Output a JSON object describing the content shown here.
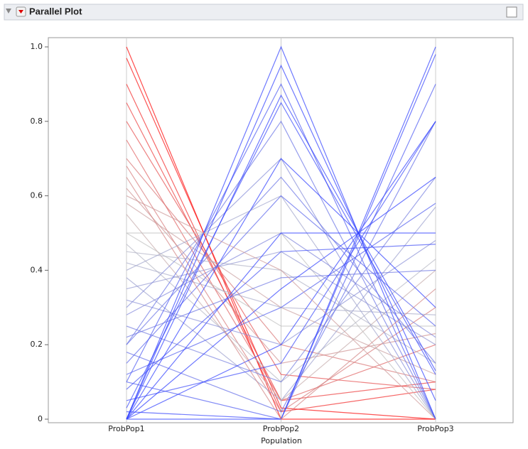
{
  "chart_data": {
    "type": "parallel",
    "title": "Parallel Plot",
    "x_label": "Population",
    "dimensions": [
      "ProbPop1",
      "ProbPop2",
      "ProbPop3"
    ],
    "ylim": [
      0,
      1
    ],
    "yticks": [
      0,
      0.2,
      0.4,
      0.6,
      0.8,
      {
        "value": 1,
        "label": "1.0"
      }
    ],
    "color_high": "#ff0000",
    "color_mid": "#c0c0c0",
    "color_low": "#3040ff",
    "values": [
      [
        1,
        0,
        0
      ],
      [
        0.97,
        0.03,
        0
      ],
      [
        0.9,
        0.02,
        0.08
      ],
      [
        0.85,
        0.05,
        0.1
      ],
      [
        0.8,
        0.12,
        0.08
      ],
      [
        0.75,
        0.05,
        0.2
      ],
      [
        0.7,
        0.2,
        0.1
      ],
      [
        0.68,
        0.02,
        0.3
      ],
      [
        0.62,
        0.15,
        0.23
      ],
      [
        0.58,
        0.3,
        0.12
      ],
      [
        0.55,
        0.05,
        0.4
      ],
      [
        0.5,
        0.5,
        0
      ],
      [
        0.5,
        0.25,
        0.25
      ],
      [
        0.47,
        0.1,
        0.43
      ],
      [
        0.45,
        0.4,
        0.15
      ],
      [
        0.42,
        0.3,
        0.28
      ],
      [
        0.4,
        0.6,
        0
      ],
      [
        0.38,
        0.05,
        0.57
      ],
      [
        0.35,
        0.45,
        0.2
      ],
      [
        0.32,
        0.2,
        0.48
      ],
      [
        0.3,
        0.7,
        0
      ],
      [
        0.28,
        0.5,
        0.22
      ],
      [
        0.25,
        0.1,
        0.65
      ],
      [
        0.22,
        0.38,
        0.4
      ],
      [
        0.2,
        0.8,
        0
      ],
      [
        0.18,
        0.02,
        0.8
      ],
      [
        0.15,
        0.6,
        0.25
      ],
      [
        0.12,
        0.3,
        0.58
      ],
      [
        0.1,
        0.9,
        0
      ],
      [
        0.08,
        0.45,
        0.47
      ],
      [
        0.05,
        0.15,
        0.8
      ],
      [
        0.03,
        0.85,
        0.12
      ],
      [
        0,
        1,
        0
      ],
      [
        0,
        0,
        1
      ],
      [
        0,
        0.5,
        0.5
      ],
      [
        0,
        0.87,
        0.13
      ],
      [
        0,
        0.2,
        0.8
      ],
      [
        0,
        0.7,
        0.3
      ],
      [
        0,
        0.35,
        0.65
      ],
      [
        0,
        0.95,
        0.05
      ],
      [
        0.02,
        0,
        0.98
      ],
      [
        0.1,
        0,
        0.9
      ],
      [
        0.2,
        0.65,
        0.15
      ],
      [
        0.6,
        0.4,
        0
      ],
      [
        0.65,
        0,
        0.35
      ]
    ]
  }
}
